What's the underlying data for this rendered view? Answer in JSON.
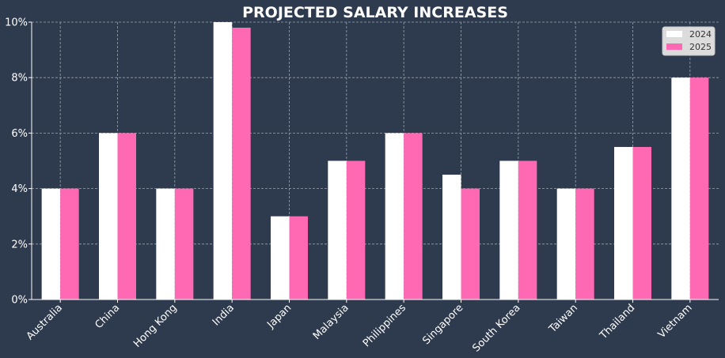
{
  "chart_data": {
    "type": "bar",
    "title": "PROJECTED SALARY INCREASES",
    "xlabel": "",
    "ylabel": "",
    "categories": [
      "Australia",
      "China",
      "Hong Kong",
      "India",
      "Japan",
      "Malaysia",
      "Philippines",
      "Singapore",
      "South Korea",
      "Taiwan",
      "Thailand",
      "Vietnam"
    ],
    "series": [
      {
        "name": "2024",
        "color": "#ffffff",
        "values": [
          4,
          6,
          4,
          10,
          3,
          5,
          6,
          4.5,
          5,
          4,
          5.5,
          8
        ]
      },
      {
        "name": "2025",
        "color": "#ff69b4",
        "values": [
          4,
          6,
          4,
          9.8,
          3,
          5,
          6,
          4,
          5,
          4,
          5.5,
          8
        ]
      }
    ],
    "ylim": [
      0,
      10
    ],
    "yticks": [
      0,
      2,
      4,
      6,
      8,
      10
    ],
    "ytick_labels": [
      "0%",
      "2%",
      "4%",
      "6%",
      "8%",
      "10%"
    ],
    "grid": true,
    "legend_position": "top-right",
    "background_color": "#2e3a4d"
  }
}
